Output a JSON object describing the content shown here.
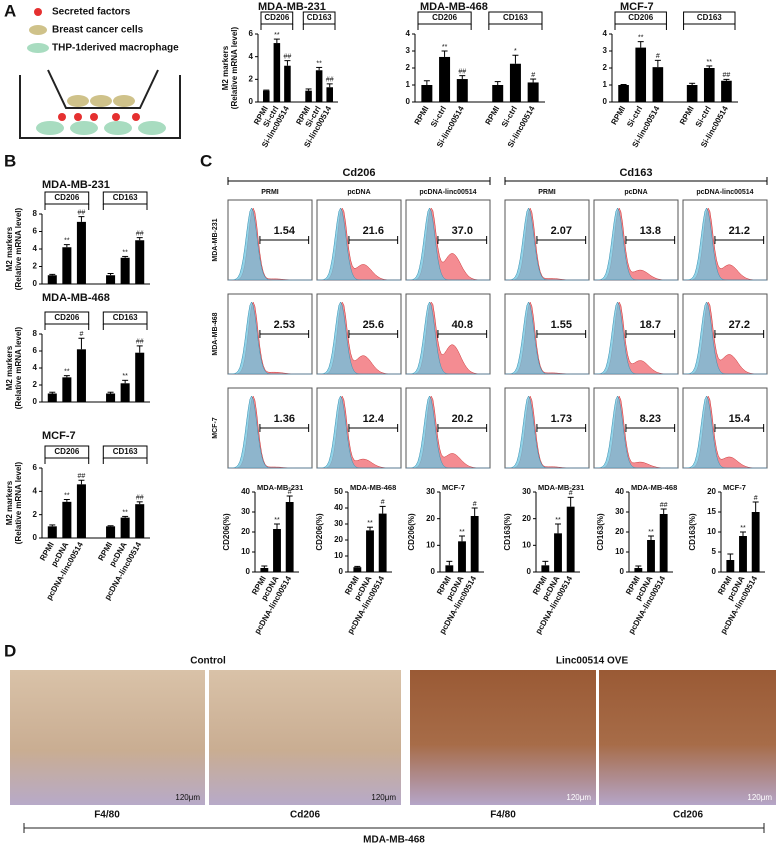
{
  "panel_labels": [
    "A",
    "B",
    "C",
    "D"
  ],
  "schematic": {
    "legend": [
      "Secreted factors",
      "Breast cancer cells",
      "THP-1derived macrophage"
    ]
  },
  "chart_data": [
    {
      "type": "bar",
      "title": "MDA-MB-231",
      "ylabel": [
        "M2 markers",
        "(Relative mRNA level)"
      ],
      "groups": [
        "CD206",
        "CD163"
      ],
      "categories": [
        "RPMI",
        "Si-ctrl",
        "Si-linc00514",
        "RPMI",
        "Si-ctrl",
        "Si-linc00514"
      ],
      "values": [
        1.0,
        5.2,
        3.2,
        1.0,
        2.8,
        1.3
      ],
      "errors": [
        0.05,
        0.35,
        0.45,
        0.15,
        0.25,
        0.3
      ],
      "annotations": [
        null,
        "**",
        "##",
        null,
        "**",
        "##"
      ],
      "ylim": [
        0,
        6
      ],
      "yticks": [
        0,
        2,
        4,
        6
      ],
      "color": "#000000"
    },
    {
      "type": "bar",
      "title": "MDA-MB-468",
      "groups": [
        "CD206",
        "CD163"
      ],
      "categories": [
        "RPMI",
        "Si-ctrl",
        "Si-linc00514",
        "RPMI",
        "Si-ctrl",
        "Si-linc00514"
      ],
      "values": [
        1.0,
        2.65,
        1.35,
        1.0,
        2.25,
        1.15
      ],
      "errors": [
        0.25,
        0.35,
        0.2,
        0.2,
        0.5,
        0.2
      ],
      "annotations": [
        null,
        "**",
        "##",
        null,
        "*",
        "#"
      ],
      "ylim": [
        0,
        4
      ],
      "yticks": [
        0,
        1,
        2,
        3,
        4
      ],
      "color": "#000000"
    },
    {
      "type": "bar",
      "title": "MCF-7",
      "groups": [
        "CD206",
        "CD163"
      ],
      "categories": [
        "RPMI",
        "Si-ctrl",
        "Si-linc00514",
        "RPMI",
        "Si-ctrl",
        "Si-linc00514"
      ],
      "values": [
        1.0,
        3.2,
        2.05,
        1.0,
        2.0,
        1.25
      ],
      "errors": [
        0.03,
        0.35,
        0.4,
        0.1,
        0.12,
        0.08
      ],
      "annotations": [
        null,
        "**",
        "#",
        null,
        "**",
        "##"
      ],
      "ylim": [
        0,
        4
      ],
      "yticks": [
        0,
        1,
        2,
        3,
        4
      ],
      "color": "#000000"
    },
    {
      "type": "bar",
      "title": "MDA-MB-231",
      "ylabel": [
        "M2 markers",
        "(Relative mRNA level)"
      ],
      "groups": [
        "CD206",
        "CD163"
      ],
      "categories": [
        null,
        null,
        null,
        null,
        null,
        null
      ],
      "values": [
        1.0,
        4.2,
        7.1,
        1.0,
        3.0,
        5.0
      ],
      "errors": [
        0.1,
        0.3,
        0.6,
        0.2,
        0.15,
        0.3
      ],
      "annotations": [
        null,
        "**",
        "##",
        null,
        "**",
        "##"
      ],
      "ylim": [
        0,
        8
      ],
      "yticks": [
        0,
        2,
        4,
        6,
        8
      ],
      "color": "#000000"
    },
    {
      "type": "bar",
      "title": "MDA-MB-468",
      "ylabel": [
        "M2 markers",
        "(Relative mRNA level)"
      ],
      "groups": [
        "CD206",
        "CD163"
      ],
      "categories": [
        null,
        null,
        null,
        null,
        null,
        null
      ],
      "values": [
        1.0,
        2.9,
        6.2,
        1.0,
        2.2,
        5.8
      ],
      "errors": [
        0.15,
        0.2,
        1.3,
        0.15,
        0.35,
        0.8
      ],
      "annotations": [
        null,
        "**",
        "#",
        null,
        "**",
        "##"
      ],
      "ylim": [
        0,
        8
      ],
      "yticks": [
        0,
        2,
        4,
        6,
        8
      ],
      "color": "#000000"
    },
    {
      "type": "bar",
      "title": "MCF-7",
      "ylabel": [
        "M2 markers",
        "(Relative mRNA level)"
      ],
      "groups": [
        "CD206",
        "CD163"
      ],
      "categories": [
        "RPMI",
        "pcDNA",
        "pcDNA-linc00514",
        "RPMI",
        "pcDNA",
        "pcDNA-linc00514"
      ],
      "values": [
        1.0,
        3.1,
        4.6,
        1.0,
        1.75,
        2.9
      ],
      "errors": [
        0.12,
        0.2,
        0.35,
        0.05,
        0.1,
        0.2
      ],
      "annotations": [
        null,
        "**",
        "##",
        null,
        "**",
        "##"
      ],
      "ylim": [
        0,
        6
      ],
      "yticks": [
        0,
        2,
        4,
        6
      ],
      "color": "#000000"
    },
    {
      "type": "flow",
      "groups": [
        "Cd206",
        "Cd163"
      ],
      "columns": [
        "PRMI",
        "pcDNA",
        "pcDNA-linc00514",
        "PRMI",
        "pcDNA",
        "pcDNA-linc00514"
      ],
      "rows": [
        "MDA-MB-231",
        "MDA-MB-468",
        "MCF-7"
      ],
      "values": [
        [
          1.54,
          21.6,
          37.0,
          2.07,
          13.8,
          21.2
        ],
        [
          2.53,
          25.6,
          40.8,
          1.55,
          18.7,
          27.2
        ],
        [
          1.36,
          12.4,
          20.2,
          1.73,
          8.23,
          15.4
        ]
      ],
      "value_labels": [
        [
          "1.54",
          "21.6",
          "37.0",
          "2.07",
          "13.8",
          "21.2"
        ],
        [
          "2.53",
          "25.6",
          "40.8",
          "1.55",
          "18.7",
          "27.2"
        ],
        [
          "1.36",
          "12.4",
          "20.2",
          "1.73",
          "8.23",
          "15.4"
        ]
      ],
      "colors": [
        "#f2787f",
        "#6cc3df"
      ]
    },
    {
      "type": "bar",
      "title": "MDA-MB-231",
      "ylabel": [
        "CD206(%)"
      ],
      "categories": [
        "RPMI",
        "pcDNA",
        "pcDNA-linc00514"
      ],
      "values": [
        2,
        21.5,
        35
      ],
      "errors": [
        1,
        2.5,
        3
      ],
      "annotations": [
        null,
        "**",
        "#"
      ],
      "ylim": [
        0,
        40
      ],
      "yticks": [
        0,
        10,
        20,
        30,
        40
      ],
      "color": "#000000"
    },
    {
      "type": "bar",
      "title": "MDA-MB-468",
      "ylabel": [
        "CD206(%)"
      ],
      "categories": [
        "RPMI",
        "pcDNA",
        "pcDNA-linc00514"
      ],
      "values": [
        3,
        26,
        36.5
      ],
      "errors": [
        0.5,
        2,
        4.5
      ],
      "annotations": [
        null,
        "**",
        "#"
      ],
      "ylim": [
        0,
        50
      ],
      "yticks": [
        0,
        10,
        20,
        30,
        40,
        50
      ],
      "color": "#000000"
    },
    {
      "type": "bar",
      "title": "MCF-7",
      "ylabel": [
        "CD206(%)"
      ],
      "categories": [
        "RPMI",
        "pcDNA",
        "pcDNA-linc00514"
      ],
      "values": [
        2.5,
        11.5,
        21
      ],
      "errors": [
        1.5,
        2,
        3
      ],
      "annotations": [
        null,
        "**",
        "#"
      ],
      "ylim": [
        0,
        30
      ],
      "yticks": [
        0,
        10,
        20,
        30
      ],
      "color": "#000000"
    },
    {
      "type": "bar",
      "title": "MDA-MB-231",
      "ylabel": [
        "CD163(%)"
      ],
      "categories": [
        "RPMI",
        "pcDNA",
        "pcDNA-linc00514"
      ],
      "values": [
        2.5,
        14.5,
        24.5
      ],
      "errors": [
        1.5,
        3.5,
        3.5
      ],
      "annotations": [
        null,
        "**",
        "#"
      ],
      "ylim": [
        0,
        30
      ],
      "yticks": [
        0,
        10,
        20,
        30
      ],
      "color": "#000000"
    },
    {
      "type": "bar",
      "title": "MDA-MB-468",
      "ylabel": [
        "CD163(%)"
      ],
      "categories": [
        "RPMI",
        "pcDNA",
        "pcDNA-linc00514"
      ],
      "values": [
        2,
        16,
        29
      ],
      "errors": [
        1,
        2,
        2.5
      ],
      "annotations": [
        null,
        "**",
        "##"
      ],
      "ylim": [
        0,
        40
      ],
      "yticks": [
        0,
        10,
        20,
        30,
        40
      ],
      "color": "#000000"
    },
    {
      "type": "bar",
      "title": "MCF-7",
      "ylabel": [
        "CD163(%)"
      ],
      "categories": [
        "RPMI",
        "pcDNA",
        "pcDNA-linc00514"
      ],
      "values": [
        3,
        9,
        15
      ],
      "errors": [
        1.5,
        1,
        2.5
      ],
      "annotations": [
        null,
        "**",
        "#"
      ],
      "ylim": [
        0,
        20
      ],
      "yticks": [
        0,
        5,
        10,
        15,
        20
      ],
      "color": "#000000"
    }
  ],
  "images": {
    "groups": [
      "Control",
      "Linc00514 OVE"
    ],
    "labels": [
      "F4/80",
      "Cd206",
      "F4/80",
      "Cd206"
    ],
    "scale": "120μm",
    "cell_line": "MDA-MB-468"
  }
}
